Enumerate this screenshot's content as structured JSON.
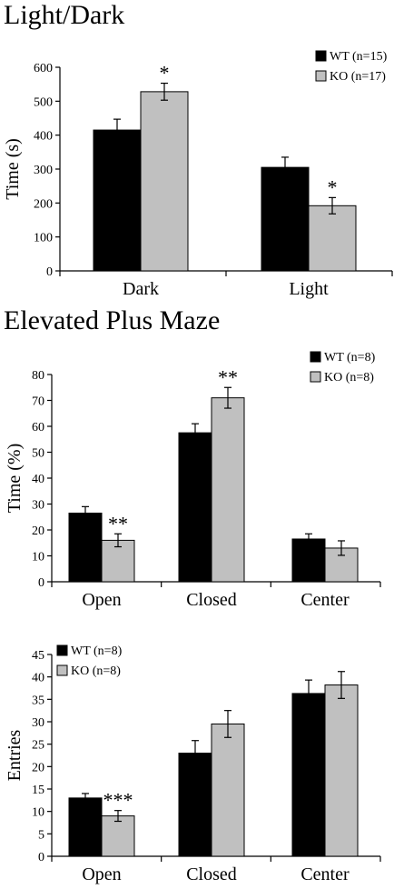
{
  "sections": [
    {
      "title": "Light/Dark"
    },
    {
      "title": "Elevated Plus Maze"
    }
  ],
  "colors": {
    "wt": "#000000",
    "ko": "#c0c0c0",
    "axis": "#000000"
  },
  "chart_data": [
    {
      "type": "bar",
      "categories": [
        "Dark",
        "Light"
      ],
      "ylabel": "Time (s)",
      "xlabel": "",
      "ylim": [
        0,
        600
      ],
      "yticks": [
        0,
        100,
        200,
        300,
        400,
        500,
        600
      ],
      "legend_position": "top-right",
      "series": [
        {
          "name": "WT (n=15)",
          "values": [
            415,
            305
          ],
          "errors": [
            32,
            30
          ]
        },
        {
          "name": "KO (n=17)",
          "values": [
            528,
            192
          ],
          "errors": [
            25,
            24
          ]
        }
      ],
      "annotations": [
        {
          "category": "Dark",
          "series": 1,
          "text": "*"
        },
        {
          "category": "Light",
          "series": 1,
          "text": "*"
        }
      ]
    },
    {
      "type": "bar",
      "categories": [
        "Open",
        "Closed",
        "Center"
      ],
      "ylabel": "Time (%)",
      "xlabel": "",
      "ylim": [
        0,
        80
      ],
      "yticks": [
        0,
        10,
        20,
        30,
        40,
        50,
        60,
        70,
        80
      ],
      "legend_position": "top-right",
      "series": [
        {
          "name": "WT (n=8)",
          "values": [
            26.5,
            57.5,
            16.5
          ],
          "errors": [
            2.5,
            3.5,
            2
          ]
        },
        {
          "name": "KO (n=8)",
          "values": [
            16,
            71,
            13
          ],
          "errors": [
            2.5,
            4,
            2.8
          ]
        }
      ],
      "annotations": [
        {
          "category": "Open",
          "series": 1,
          "text": "**"
        },
        {
          "category": "Closed",
          "series": 1,
          "text": "**"
        }
      ]
    },
    {
      "type": "bar",
      "categories": [
        "Open",
        "Closed",
        "Center"
      ],
      "ylabel": "Entries",
      "xlabel": "",
      "ylim": [
        0,
        45
      ],
      "yticks": [
        0,
        5,
        10,
        15,
        20,
        25,
        30,
        35,
        40,
        45
      ],
      "legend_position": "top-left",
      "series": [
        {
          "name": "WT (n=8)",
          "values": [
            13,
            23,
            36.3
          ],
          "errors": [
            1,
            2.8,
            3
          ]
        },
        {
          "name": "KO (n=8)",
          "values": [
            9,
            29.5,
            38.2
          ],
          "errors": [
            1.2,
            3,
            3
          ]
        }
      ],
      "annotations": [
        {
          "category": "Open",
          "series": 1,
          "text": "***"
        }
      ]
    }
  ]
}
